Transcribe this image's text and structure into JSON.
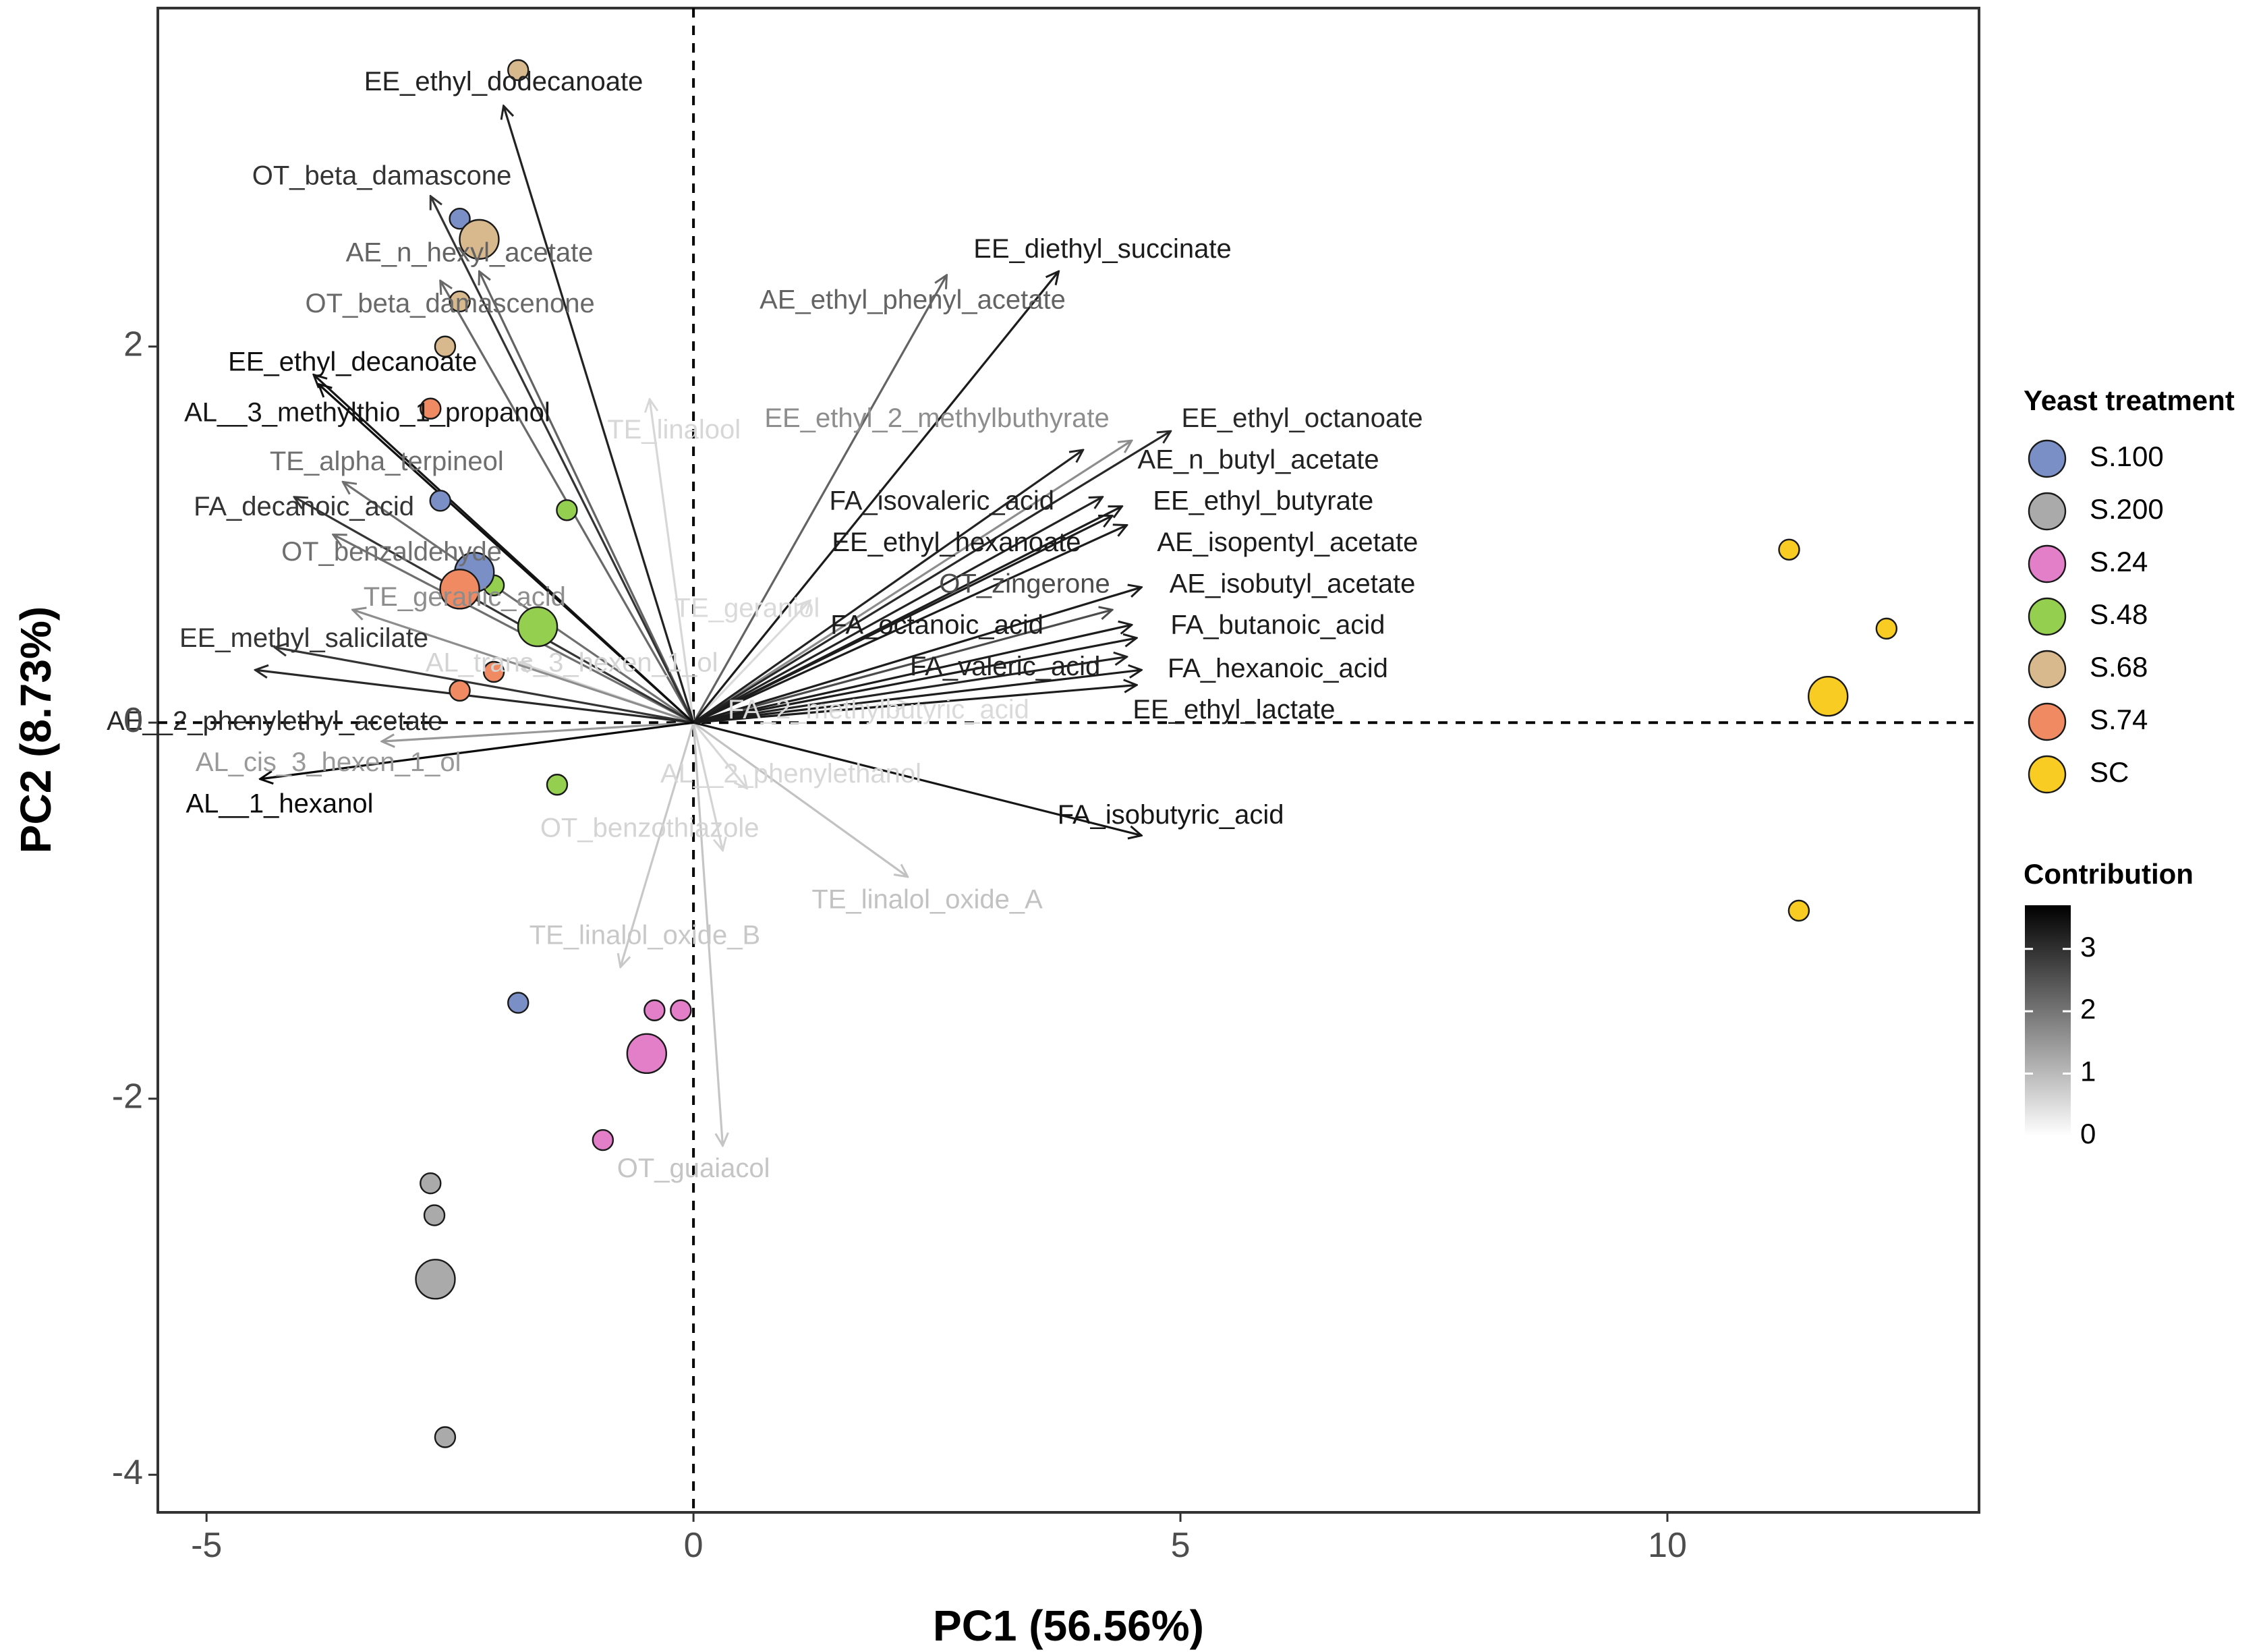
{
  "chart_data": {
    "type": "scatter",
    "subtype": "pca-biplot",
    "xlabel": "PC1 (56.56%)",
    "ylabel": "PC2 (8.73%)",
    "xlim": [
      -5.5,
      13.2
    ],
    "ylim": [
      -4.2,
      3.8
    ],
    "xticks": [
      -5,
      0,
      5,
      10
    ],
    "yticks": [
      -4,
      -2,
      0,
      2
    ],
    "reference_lines": {
      "x": 0,
      "y": 0,
      "style": "dashed"
    },
    "colors": {
      "S.100": "#7b8fc7",
      "S.200": "#aaaaaa",
      "S.24": "#e27fc8",
      "S.48": "#94cf50",
      "S.68": "#d8b98e",
      "S.74": "#f08a63",
      "SC": "#f8cc22"
    },
    "legend": {
      "treatment_title": "Yeast treatment",
      "treatments": [
        "S.100",
        "S.200",
        "S.24",
        "S.48",
        "S.68",
        "S.74",
        "SC"
      ],
      "contribution_title": "Contribution",
      "contribution_ticks": [
        0,
        1,
        2,
        3
      ],
      "contribution_range": [
        0,
        3.7
      ],
      "position": "right"
    },
    "samples": [
      {
        "group": "S.100",
        "x": -2.4,
        "y": 2.68,
        "centroid": false
      },
      {
        "group": "S.100",
        "x": -2.6,
        "y": 1.18,
        "centroid": false
      },
      {
        "group": "S.100",
        "x": -1.8,
        "y": -1.49,
        "centroid": false
      },
      {
        "group": "S.100",
        "x": -2.25,
        "y": 0.8,
        "centroid": true
      },
      {
        "group": "S.200",
        "x": -2.7,
        "y": -2.45,
        "centroid": false
      },
      {
        "group": "S.200",
        "x": -2.66,
        "y": -2.62,
        "centroid": false
      },
      {
        "group": "S.200",
        "x": -2.55,
        "y": -3.8,
        "centroid": false
      },
      {
        "group": "S.200",
        "x": -2.65,
        "y": -2.96,
        "centroid": true
      },
      {
        "group": "S.24",
        "x": -0.4,
        "y": -1.53,
        "centroid": false
      },
      {
        "group": "S.24",
        "x": -0.13,
        "y": -1.53,
        "centroid": false
      },
      {
        "group": "S.24",
        "x": -0.93,
        "y": -2.22,
        "centroid": false
      },
      {
        "group": "S.24",
        "x": -0.48,
        "y": -1.76,
        "centroid": true
      },
      {
        "group": "S.48",
        "x": -1.3,
        "y": 1.13,
        "centroid": false
      },
      {
        "group": "S.48",
        "x": -2.05,
        "y": 0.73,
        "centroid": false
      },
      {
        "group": "S.48",
        "x": -1.4,
        "y": -0.33,
        "centroid": false
      },
      {
        "group": "S.48",
        "x": -1.6,
        "y": 0.51,
        "centroid": true
      },
      {
        "group": "S.68",
        "x": -1.8,
        "y": 3.47,
        "centroid": false
      },
      {
        "group": "S.68",
        "x": -2.4,
        "y": 2.24,
        "centroid": false
      },
      {
        "group": "S.68",
        "x": -2.55,
        "y": 2.0,
        "centroid": false
      },
      {
        "group": "S.68",
        "x": -2.2,
        "y": 2.57,
        "centroid": true
      },
      {
        "group": "S.74",
        "x": -2.7,
        "y": 1.67,
        "centroid": false
      },
      {
        "group": "S.74",
        "x": -2.4,
        "y": 0.17,
        "centroid": false
      },
      {
        "group": "S.74",
        "x": -2.05,
        "y": 0.27,
        "centroid": false
      },
      {
        "group": "S.74",
        "x": -2.4,
        "y": 0.71,
        "centroid": true
      },
      {
        "group": "SC",
        "x": 11.25,
        "y": 0.92,
        "centroid": false
      },
      {
        "group": "SC",
        "x": 12.25,
        "y": 0.5,
        "centroid": false
      },
      {
        "group": "SC",
        "x": 11.35,
        "y": -1.0,
        "centroid": false
      },
      {
        "group": "SC",
        "x": 11.65,
        "y": 0.14,
        "centroid": true
      }
    ],
    "variables": [
      {
        "name": "EE_ethyl_dodecanoate",
        "x": -1.95,
        "y": 3.28,
        "contrib": 3.3
      },
      {
        "name": "OT_beta_damascone",
        "x": -2.7,
        "y": 2.8,
        "contrib": 3.0
      },
      {
        "name": "AE_n_hexyl_acetate",
        "x": -2.2,
        "y": 2.4,
        "contrib": 2.2
      },
      {
        "name": "OT_beta_damascenone",
        "x": -2.6,
        "y": 2.35,
        "contrib": 2.1
      },
      {
        "name": "EE_ethyl_decanoate",
        "x": -3.85,
        "y": 1.8,
        "contrib": 3.6
      },
      {
        "name": "AL__3_methylthio_1_propanol",
        "x": -3.9,
        "y": 1.85,
        "contrib": 3.5
      },
      {
        "name": "TE_linalool",
        "x": -0.45,
        "y": 1.72,
        "contrib": 0.25
      },
      {
        "name": "TE_alpha_terpineol",
        "x": -3.6,
        "y": 1.28,
        "contrib": 2.0
      },
      {
        "name": "FA_decanoic_acid",
        "x": -4.1,
        "y": 1.2,
        "contrib": 3.0
      },
      {
        "name": "OT_benzaldehyde",
        "x": -3.7,
        "y": 1.0,
        "contrib": 2.0
      },
      {
        "name": "TE_geranic_acid",
        "x": -3.5,
        "y": 0.6,
        "contrib": 1.5
      },
      {
        "name": "EE_methyl_salicilate",
        "x": -4.3,
        "y": 0.4,
        "contrib": 3.0
      },
      {
        "name": "AE__2_phenylethyl_acetate",
        "x": -4.5,
        "y": 0.28,
        "contrib": 3.2
      },
      {
        "name": "AL_cis_3_hexen_1_ol",
        "x": -3.2,
        "y": -0.1,
        "contrib": 1.3
      },
      {
        "name": "AL__1_hexanol",
        "x": -4.45,
        "y": -0.3,
        "contrib": 3.7
      },
      {
        "name": "AL_trans_3_hexen_1_ol",
        "x": -1.8,
        "y": 0.32,
        "contrib": 0.3
      },
      {
        "name": "TE_geraniol",
        "x": 1.2,
        "y": 0.65,
        "contrib": 0.2
      },
      {
        "name": "TE_linalol_oxide_B",
        "x": -0.75,
        "y": -1.3,
        "contrib": 0.5
      },
      {
        "name": "OT_benzothiazole",
        "x": 0.3,
        "y": -0.68,
        "contrib": 0.3
      },
      {
        "name": "AL__2_phenylethanol",
        "x": 0.55,
        "y": -0.35,
        "contrib": 0.25
      },
      {
        "name": "TE_linalol_oxide_A",
        "x": 2.2,
        "y": -0.82,
        "contrib": 0.6
      },
      {
        "name": "OT_guaiacol",
        "x": 0.3,
        "y": -2.25,
        "contrib": 0.55
      },
      {
        "name": "FA_2_methylbutyric_acid",
        "x": 2.2,
        "y": 0.1,
        "contrib": 0.2
      },
      {
        "name": "EE_diethyl_succinate",
        "x": 3.75,
        "y": 2.4,
        "contrib": 3.4
      },
      {
        "name": "AE_ethyl_phenyl_acetate",
        "x": 2.6,
        "y": 2.38,
        "contrib": 2.2
      },
      {
        "name": "EE_ethyl_2_methylbuthyrate",
        "x": 4.5,
        "y": 1.5,
        "contrib": 1.5
      },
      {
        "name": "EE_ethyl_octanoate",
        "x": 4.9,
        "y": 1.55,
        "contrib": 3.2
      },
      {
        "name": "AE_n_butyl_acetate",
        "x": 4.0,
        "y": 1.45,
        "contrib": 3.3
      },
      {
        "name": "FA_isovaleric_acid",
        "x": 4.2,
        "y": 1.2,
        "contrib": 3.3
      },
      {
        "name": "EE_ethyl_butyrate",
        "x": 4.4,
        "y": 1.15,
        "contrib": 3.4
      },
      {
        "name": "EE_ethyl_hexanoate",
        "x": 4.3,
        "y": 1.1,
        "contrib": 3.4
      },
      {
        "name": "AE_isopentyl_acetate",
        "x": 4.45,
        "y": 1.05,
        "contrib": 3.4
      },
      {
        "name": "AE_isobutyl_acetate",
        "x": 4.6,
        "y": 0.72,
        "contrib": 3.4
      },
      {
        "name": "OT_zingerone",
        "x": 4.3,
        "y": 0.6,
        "contrib": 2.6
      },
      {
        "name": "FA_octanoic_acid",
        "x": 4.5,
        "y": 0.52,
        "contrib": 3.4
      },
      {
        "name": "FA_butanoic_acid",
        "x": 4.55,
        "y": 0.45,
        "contrib": 3.4
      },
      {
        "name": "FA_valeric_acid",
        "x": 4.45,
        "y": 0.35,
        "contrib": 3.3
      },
      {
        "name": "FA_hexanoic_acid",
        "x": 4.6,
        "y": 0.28,
        "contrib": 3.4
      },
      {
        "name": "EE_ethyl_lactate",
        "x": 4.55,
        "y": 0.2,
        "contrib": 3.4
      },
      {
        "name": "FA_isobutyric_acid",
        "x": 4.6,
        "y": -0.6,
        "contrib": 3.5
      }
    ],
    "labels": [
      {
        "text": "EE_ethyl_dodecanoate",
        "x": -1.95,
        "y": 3.4,
        "anchor": "middle",
        "contrib": 3.3
      },
      {
        "text": "OT_beta_damascone",
        "x": -3.2,
        "y": 2.9,
        "anchor": "middle",
        "contrib": 3.0
      },
      {
        "text": "AE_n_hexyl_acetate",
        "x": -2.3,
        "y": 2.49,
        "anchor": "middle",
        "contrib": 2.2
      },
      {
        "text": "OT_beta_damascenone",
        "x": -2.5,
        "y": 2.22,
        "anchor": "middle",
        "contrib": 2.1
      },
      {
        "text": "EE_ethyl_decanoate",
        "x": -3.5,
        "y": 1.91,
        "anchor": "middle",
        "contrib": 3.6
      },
      {
        "text": "AL__3_methylthio_1_propanol",
        "x": -3.35,
        "y": 1.64,
        "anchor": "middle",
        "contrib": 3.5
      },
      {
        "text": "TE_linalool",
        "x": -0.2,
        "y": 1.55,
        "anchor": "middle",
        "contrib": 0.25
      },
      {
        "text": "TE_alpha_terpineol",
        "x": -3.15,
        "y": 1.38,
        "anchor": "middle",
        "contrib": 2.0
      },
      {
        "text": "FA_decanoic_acid",
        "x": -4.0,
        "y": 1.14,
        "anchor": "middle",
        "contrib": 3.0
      },
      {
        "text": "OT_benzaldehyde",
        "x": -3.1,
        "y": 0.9,
        "anchor": "middle",
        "contrib": 2.0
      },
      {
        "text": "TE_geranic_acid",
        "x": -2.35,
        "y": 0.66,
        "anchor": "middle",
        "contrib": 1.5
      },
      {
        "text": "EE_methyl_salicilate",
        "x": -4.0,
        "y": 0.44,
        "anchor": "middle",
        "contrib": 3.0
      },
      {
        "text": "AL_trans_3_hexen_1_ol",
        "x": -1.25,
        "y": 0.31,
        "anchor": "middle",
        "contrib": 0.3
      },
      {
        "text": "TE_geraniol",
        "x": 0.55,
        "y": 0.6,
        "anchor": "middle",
        "contrib": 0.2
      },
      {
        "text": "AE__2_phenylethyl_acetate",
        "x": -4.3,
        "y": 0.0,
        "anchor": "middle",
        "contrib": 3.2
      },
      {
        "text": "AL_cis_3_hexen_1_ol",
        "x": -3.75,
        "y": -0.22,
        "anchor": "middle",
        "contrib": 1.3
      },
      {
        "text": "AL__1_hexanol",
        "x": -4.25,
        "y": -0.44,
        "anchor": "middle",
        "contrib": 3.7
      },
      {
        "text": "AL__2_phenylethanol",
        "x": 1.0,
        "y": -0.28,
        "anchor": "middle",
        "contrib": 0.25
      },
      {
        "text": "OT_benzothiazole",
        "x": -0.45,
        "y": -0.57,
        "anchor": "middle",
        "contrib": 0.3
      },
      {
        "text": "TE_linalol_oxide_A",
        "x": 2.4,
        "y": -0.95,
        "anchor": "middle",
        "contrib": 0.6
      },
      {
        "text": "TE_linalol_oxide_B",
        "x": -0.5,
        "y": -1.14,
        "anchor": "middle",
        "contrib": 0.5
      },
      {
        "text": "OT_guaiacol",
        "x": 0.0,
        "y": -2.38,
        "anchor": "middle",
        "contrib": 0.55
      },
      {
        "text": "FA_2_methylbutyric_acid",
        "x": 1.9,
        "y": 0.06,
        "anchor": "middle",
        "contrib": 0.2
      },
      {
        "text": "EE_diethyl_succinate",
        "x": 4.2,
        "y": 2.51,
        "anchor": "middle",
        "contrib": 3.4
      },
      {
        "text": "AE_ethyl_phenyl_acetate",
        "x": 2.25,
        "y": 2.24,
        "anchor": "middle",
        "contrib": 2.2
      },
      {
        "text": "EE_ethyl_2_methylbuthyrate",
        "x": 2.5,
        "y": 1.61,
        "anchor": "middle",
        "contrib": 1.5
      },
      {
        "text": "EE_ethyl_octanoate",
        "x": 6.25,
        "y": 1.61,
        "anchor": "middle",
        "contrib": 3.2
      },
      {
        "text": "AE_n_butyl_acetate",
        "x": 5.8,
        "y": 1.39,
        "anchor": "middle",
        "contrib": 3.3
      },
      {
        "text": "FA_isovaleric_acid",
        "x": 2.55,
        "y": 1.17,
        "anchor": "middle",
        "contrib": 3.3
      },
      {
        "text": "EE_ethyl_butyrate",
        "x": 5.85,
        "y": 1.17,
        "anchor": "middle",
        "contrib": 3.4
      },
      {
        "text": "EE_ethyl_hexanoate",
        "x": 2.7,
        "y": 0.95,
        "anchor": "middle",
        "contrib": 3.4
      },
      {
        "text": "AE_isopentyl_acetate",
        "x": 6.1,
        "y": 0.95,
        "anchor": "middle",
        "contrib": 3.4
      },
      {
        "text": "OT_zingerone",
        "x": 3.4,
        "y": 0.73,
        "anchor": "middle",
        "contrib": 2.6
      },
      {
        "text": "AE_isobutyl_acetate",
        "x": 6.15,
        "y": 0.73,
        "anchor": "middle",
        "contrib": 3.4
      },
      {
        "text": "FA_octanoic_acid",
        "x": 2.5,
        "y": 0.51,
        "anchor": "middle",
        "contrib": 3.4
      },
      {
        "text": "FA_butanoic_acid",
        "x": 6.0,
        "y": 0.51,
        "anchor": "middle",
        "contrib": 3.4
      },
      {
        "text": "FA_valeric_acid",
        "x": 3.2,
        "y": 0.29,
        "anchor": "middle",
        "contrib": 3.3
      },
      {
        "text": "FA_hexanoic_acid",
        "x": 6.0,
        "y": 0.28,
        "anchor": "middle",
        "contrib": 3.4
      },
      {
        "text": "EE_ethyl_lactate",
        "x": 5.55,
        "y": 0.06,
        "anchor": "middle",
        "contrib": 3.4
      },
      {
        "text": "FA_isobutyric_acid",
        "x": 4.9,
        "y": -0.5,
        "anchor": "middle",
        "contrib": 3.5
      }
    ]
  }
}
